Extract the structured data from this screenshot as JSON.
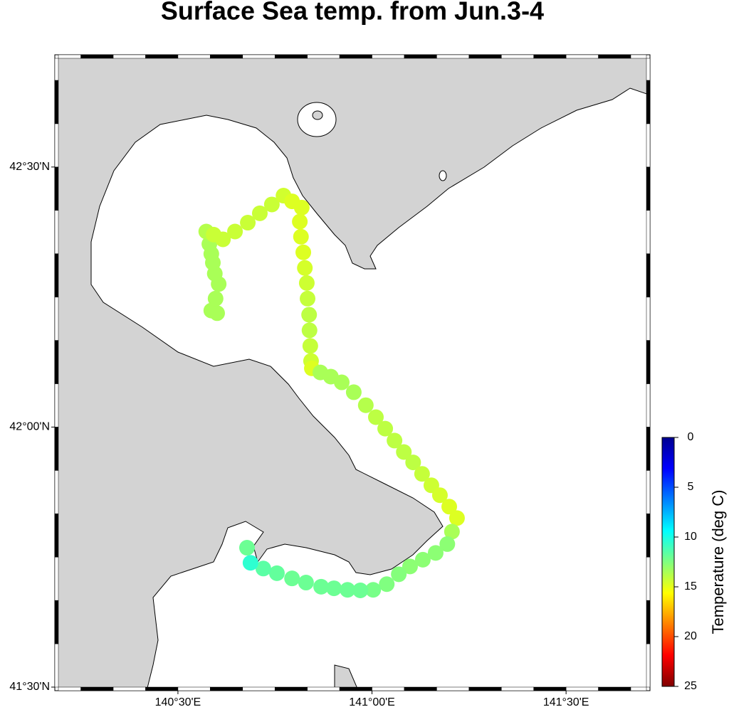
{
  "chart_data": {
    "type": "scatter",
    "title": "Surface Sea temp. from Jun.3-4",
    "xlim": [
      140.192,
      141.707
    ],
    "ylim": [
      41.5,
      42.709
    ],
    "xticks": [
      {
        "value": 140.5,
        "label": "140°30'E"
      },
      {
        "value": 141.0,
        "label": "141°00'E"
      },
      {
        "value": 141.5,
        "label": "141°30'E"
      }
    ],
    "yticks": [
      {
        "value": 41.5,
        "label": "41°30'N"
      },
      {
        "value": 42.0,
        "label": "42°00'N"
      },
      {
        "value": 42.5,
        "label": "42°30'N"
      }
    ],
    "x": [
      140.586,
      140.601,
      140.597,
      140.605,
      140.595,
      140.59,
      140.586,
      140.581,
      140.573,
      140.592,
      140.616,
      140.647,
      140.68,
      140.711,
      140.742,
      140.772,
      140.794,
      140.819,
      140.814,
      140.817,
      140.823,
      140.827,
      140.832,
      140.834,
      140.838,
      140.839,
      140.841,
      140.843,
      140.845,
      140.867,
      140.894,
      140.922,
      140.953,
      140.984,
      141.01,
      141.034,
      141.058,
      141.082,
      141.106,
      141.129,
      141.153,
      141.175,
      141.199,
      141.219,
      141.206,
      141.194,
      141.164,
      141.131,
      141.098,
      141.069,
      141.038,
      141.003,
      140.97,
      140.937,
      140.902,
      140.869,
      140.83,
      140.794,
      140.755,
      140.72,
      140.687,
      140.678
    ],
    "y": [
      42.224,
      42.219,
      42.247,
      42.275,
      42.295,
      42.316,
      42.333,
      42.352,
      42.376,
      42.37,
      42.361,
      42.376,
      42.393,
      42.411,
      42.428,
      42.445,
      42.434,
      42.422,
      42.395,
      42.366,
      42.336,
      42.306,
      42.277,
      42.247,
      42.216,
      42.186,
      42.156,
      42.127,
      42.113,
      42.105,
      42.097,
      42.086,
      42.067,
      42.042,
      42.019,
      41.997,
      41.974,
      41.952,
      41.932,
      41.91,
      41.888,
      41.869,
      41.847,
      41.825,
      41.799,
      41.775,
      41.758,
      41.745,
      41.732,
      41.717,
      41.698,
      41.687,
      41.686,
      41.687,
      41.69,
      41.693,
      41.701,
      41.709,
      41.719,
      41.728,
      41.739,
      41.768
    ],
    "values": [
      13.5,
      13.5,
      13.5,
      13.5,
      13.5,
      13.5,
      13.5,
      13.5,
      13.8,
      14.3,
      14.3,
      14.3,
      14.3,
      14.3,
      14.3,
      14.5,
      14.8,
      14.8,
      14.8,
      14.8,
      14.8,
      14.6,
      14.4,
      14.2,
      14.0,
      14.0,
      14.2,
      14.4,
      14.8,
      13.5,
      13.5,
      13.5,
      13.5,
      13.8,
      14.0,
      14.0,
      14.0,
      14.0,
      14.0,
      14.2,
      14.4,
      14.6,
      14.8,
      14.8,
      13.5,
      12.8,
      12.8,
      12.8,
      12.8,
      12.6,
      12.5,
      12.3,
      12.0,
      12.0,
      12.0,
      12.0,
      12.0,
      12.0,
      11.8,
      11.6,
      10.5,
      12.0
    ],
    "colormap": [
      "#00008f",
      "#0000ff",
      "#0080ff",
      "#00ffff",
      "#80ff80",
      "#ffff00",
      "#ff8000",
      "#ff0000",
      "#800000"
    ],
    "colorbar": {
      "label": "Temperature (deg C)",
      "lim": [
        0,
        25
      ],
      "ticks": [
        0,
        5,
        10,
        15,
        20,
        25
      ]
    }
  }
}
